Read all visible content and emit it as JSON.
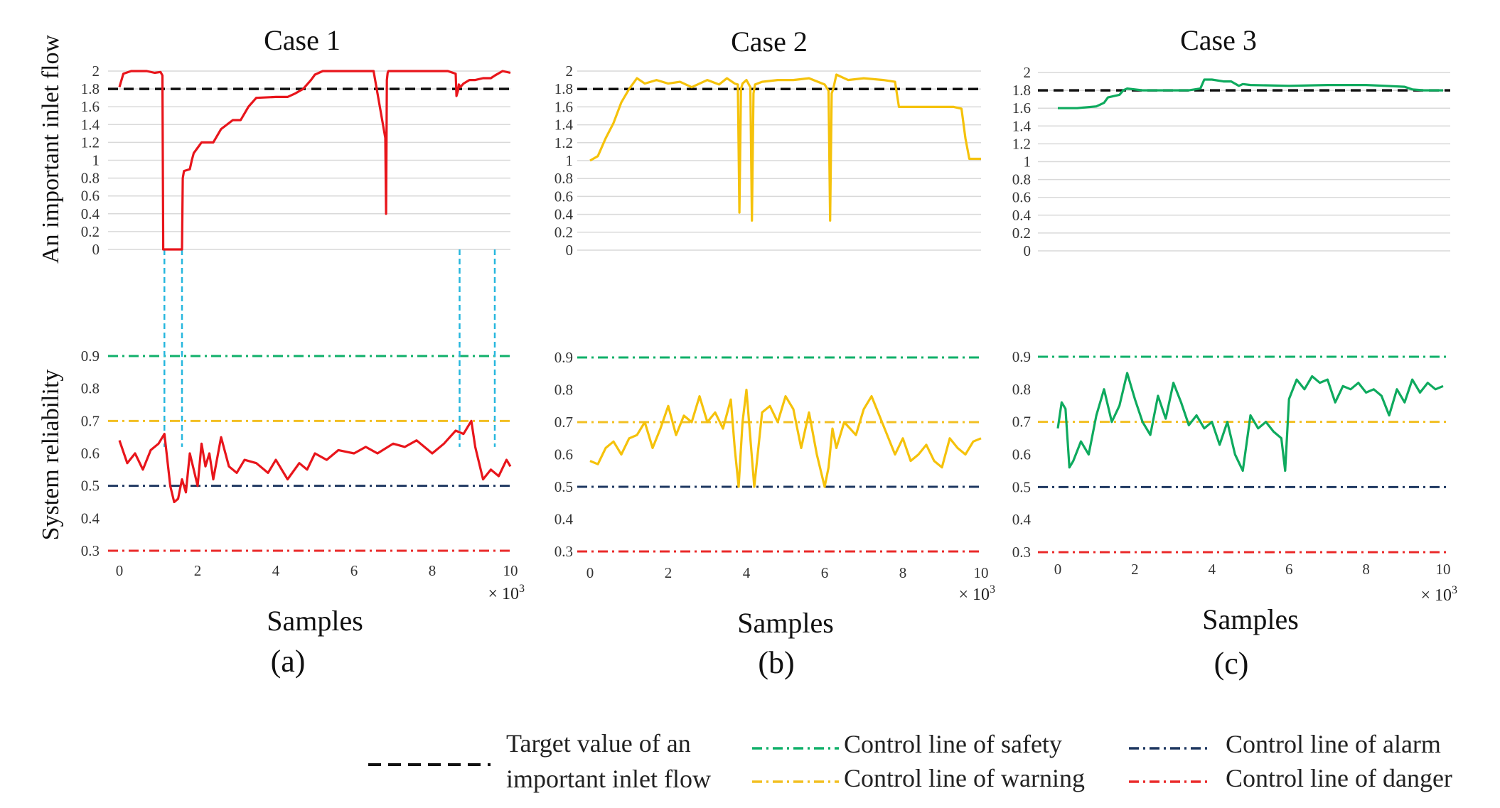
{
  "colors": {
    "case1": "#e8151b",
    "case2": "#f5c20b",
    "case3": "#0eaa5e",
    "target": "#111111",
    "safety": "#10b06a",
    "warning": "#f2bf22",
    "alarm": "#1e3760",
    "danger": "#ea2a2a",
    "connector": "#27b7de",
    "grid": "#d9d9d9"
  },
  "figure": {
    "ylabel_top": "An important inlet flow",
    "ylabel_bottom": "System reliability",
    "xlabel": "Samples",
    "multiplier_base": "× 10",
    "multiplier_exp": "3"
  },
  "legend": {
    "target_line1": "Target value of an",
    "target_line2": "important inlet flow",
    "safety": "Control line of safety",
    "warning": "Control line of warning",
    "alarm": "Control line of alarm",
    "danger": "Control line of danger"
  },
  "chart_data": [
    {
      "type": "line",
      "title": "Case 1",
      "sublabel": "(a)",
      "top": {
        "ylabel": "An important inlet flow",
        "yticks": [
          "0",
          "0.2",
          "0.4",
          "0.6",
          "0.8",
          "1",
          "1.2",
          "1.4",
          "1.6",
          "1.8",
          "2"
        ],
        "ylim": [
          0,
          2
        ],
        "target": 1.8,
        "series": [
          {
            "x": [
              0,
              0.1,
              0.3,
              0.5,
              0.7,
              0.9,
              1.05,
              1.1,
              1.12,
              1.2,
              1.3,
              1.6,
              1.62,
              1.65,
              1.8,
              1.85,
              1.9,
              2.1,
              2.3,
              2.4,
              2.6,
              2.9,
              3.1,
              3.3,
              3.5,
              4.0,
              4.3,
              4.5,
              4.7,
              4.9,
              5.0,
              5.2,
              5.5,
              6.0,
              6.5,
              6.8,
              6.82,
              6.84,
              6.86,
              6.88,
              7.2,
              7.5,
              8.0,
              8.4,
              8.6,
              8.62,
              8.66,
              8.68,
              8.72,
              8.8,
              8.95,
              9.1,
              9.3,
              9.5,
              9.6,
              9.8,
              10.0
            ],
            "y": [
              1.82,
              1.97,
              2.0,
              2.0,
              2.0,
              1.98,
              1.99,
              1.95,
              0.0,
              0.0,
              0.0,
              0.0,
              0.8,
              0.88,
              0.9,
              1.0,
              1.08,
              1.2,
              1.2,
              1.2,
              1.35,
              1.45,
              1.45,
              1.6,
              1.7,
              1.71,
              1.71,
              1.75,
              1.8,
              1.9,
              1.96,
              2.0,
              2.0,
              2.0,
              2.0,
              1.25,
              0.4,
              1.9,
              1.98,
              2.0,
              2.0,
              2.0,
              2.0,
              2.0,
              1.97,
              1.72,
              1.78,
              1.85,
              1.82,
              1.86,
              1.9,
              1.9,
              1.92,
              1.92,
              1.95,
              2.0,
              1.98
            ]
          }
        ]
      },
      "bottom": {
        "ylabel": "System reliability",
        "yticks": [
          "0.3",
          "0.4",
          "0.5",
          "0.6",
          "0.7",
          "0.8",
          "0.9"
        ],
        "ylim": [
          0.3,
          0.9
        ],
        "safety": 0.9,
        "warning": 0.7,
        "alarm": 0.5,
        "danger": 0.3,
        "series": [
          {
            "x": [
              0,
              0.2,
              0.4,
              0.6,
              0.8,
              1.0,
              1.15,
              1.3,
              1.4,
              1.5,
              1.6,
              1.7,
              1.8,
              1.9,
              2.0,
              2.1,
              2.2,
              2.3,
              2.4,
              2.6,
              2.8,
              3.0,
              3.2,
              3.5,
              3.8,
              4.0,
              4.3,
              4.6,
              4.8,
              5.0,
              5.3,
              5.6,
              6.0,
              6.3,
              6.6,
              7.0,
              7.3,
              7.6,
              8.0,
              8.3,
              8.6,
              8.8,
              9.0,
              9.1,
              9.3,
              9.5,
              9.7,
              9.9,
              10.0
            ],
            "y": [
              0.64,
              0.57,
              0.6,
              0.55,
              0.61,
              0.63,
              0.66,
              0.5,
              0.45,
              0.46,
              0.52,
              0.48,
              0.6,
              0.55,
              0.5,
              0.63,
              0.56,
              0.6,
              0.52,
              0.65,
              0.56,
              0.54,
              0.58,
              0.57,
              0.54,
              0.58,
              0.52,
              0.57,
              0.55,
              0.6,
              0.58,
              0.61,
              0.6,
              0.62,
              0.6,
              0.63,
              0.62,
              0.64,
              0.6,
              0.63,
              0.67,
              0.66,
              0.7,
              0.62,
              0.52,
              0.55,
              0.53,
              0.58,
              0.56
            ]
          }
        ]
      },
      "xticks": [
        "0",
        "2",
        "4",
        "6",
        "8",
        "10"
      ],
      "xlim": [
        0,
        10
      ],
      "xlabel": "Samples",
      "connectors": [
        1.15,
        1.6,
        8.7,
        9.6
      ]
    },
    {
      "type": "line",
      "title": "Case 2",
      "sublabel": "(b)",
      "top": {
        "ylabel": "An important inlet flow",
        "yticks": [
          "0",
          "0.2",
          "0.4",
          "0.6",
          "0.8",
          "1",
          "1.2",
          "1.4",
          "1.6",
          "1.8",
          "2"
        ],
        "ylim": [
          0,
          2
        ],
        "target": 1.8,
        "series": [
          {
            "x": [
              0,
              0.2,
              0.4,
              0.6,
              0.8,
              1.0,
              1.2,
              1.4,
              1.7,
              2.0,
              2.3,
              2.6,
              3.0,
              3.3,
              3.5,
              3.7,
              3.78,
              3.82,
              3.86,
              3.9,
              4.0,
              4.1,
              4.14,
              4.18,
              4.22,
              4.4,
              4.8,
              5.2,
              5.6,
              6.0,
              6.1,
              6.14,
              6.18,
              6.22,
              6.3,
              6.6,
              7.0,
              7.5,
              7.8,
              7.9,
              8.0,
              8.5,
              9.0,
              9.3,
              9.5,
              9.6,
              9.7,
              10.0
            ],
            "y": [
              1.0,
              1.05,
              1.25,
              1.42,
              1.65,
              1.8,
              1.92,
              1.86,
              1.9,
              1.86,
              1.88,
              1.82,
              1.9,
              1.85,
              1.92,
              1.86,
              1.85,
              0.42,
              1.8,
              1.86,
              1.9,
              1.82,
              0.33,
              1.75,
              1.85,
              1.88,
              1.9,
              1.9,
              1.92,
              1.85,
              1.78,
              0.33,
              1.75,
              1.8,
              1.96,
              1.9,
              1.92,
              1.9,
              1.88,
              1.6,
              1.6,
              1.6,
              1.6,
              1.6,
              1.58,
              1.25,
              1.02,
              1.02
            ]
          }
        ]
      },
      "bottom": {
        "ylabel": "System reliability",
        "yticks": [
          "0.3",
          "0.4",
          "0.5",
          "0.6",
          "0.7",
          "0.8",
          "0.9"
        ],
        "ylim": [
          0.3,
          0.9
        ],
        "safety": 0.9,
        "warning": 0.7,
        "alarm": 0.5,
        "danger": 0.3,
        "series": [
          {
            "x": [
              0,
              0.2,
              0.4,
              0.6,
              0.8,
              1.0,
              1.2,
              1.4,
              1.6,
              1.8,
              2.0,
              2.2,
              2.4,
              2.6,
              2.8,
              3.0,
              3.2,
              3.4,
              3.6,
              3.7,
              3.8,
              3.9,
              4.0,
              4.1,
              4.2,
              4.4,
              4.6,
              4.8,
              5.0,
              5.2,
              5.4,
              5.6,
              5.8,
              6.0,
              6.1,
              6.2,
              6.3,
              6.5,
              6.8,
              7.0,
              7.2,
              7.4,
              7.6,
              7.8,
              8.0,
              8.2,
              8.4,
              8.6,
              8.8,
              9.0,
              9.2,
              9.4,
              9.6,
              9.8,
              10.0
            ],
            "y": [
              0.58,
              0.57,
              0.62,
              0.64,
              0.6,
              0.65,
              0.66,
              0.7,
              0.62,
              0.68,
              0.75,
              0.66,
              0.72,
              0.7,
              0.78,
              0.7,
              0.73,
              0.68,
              0.77,
              0.62,
              0.5,
              0.7,
              0.8,
              0.65,
              0.5,
              0.73,
              0.75,
              0.7,
              0.78,
              0.74,
              0.62,
              0.73,
              0.6,
              0.5,
              0.56,
              0.68,
              0.62,
              0.7,
              0.66,
              0.74,
              0.78,
              0.72,
              0.66,
              0.6,
              0.65,
              0.58,
              0.6,
              0.63,
              0.58,
              0.56,
              0.65,
              0.62,
              0.6,
              0.64,
              0.65
            ]
          }
        ]
      },
      "xticks": [
        "0",
        "2",
        "4",
        "6",
        "8",
        "10"
      ],
      "xlim": [
        0,
        10
      ],
      "xlabel": "Samples",
      "connectors": []
    },
    {
      "type": "line",
      "title": "Case 3",
      "sublabel": "(c)",
      "top": {
        "ylabel": "An important inlet flow",
        "yticks": [
          "0",
          "0.2",
          "0.4",
          "0.6",
          "0.8",
          "1",
          "1.2",
          "1.4",
          "1.6",
          "1.8",
          "2"
        ],
        "ylim": [
          0,
          2
        ],
        "target": 1.8,
        "series": [
          {
            "x": [
              0,
              0.5,
              1.0,
              1.2,
              1.3,
              1.6,
              1.7,
              1.8,
              2.2,
              2.8,
              3.4,
              3.7,
              3.8,
              4.0,
              4.3,
              4.5,
              4.7,
              4.8,
              5.0,
              6.0,
              7.0,
              8.0,
              8.5,
              9.0,
              9.2,
              9.5,
              10.0
            ],
            "y": [
              1.6,
              1.6,
              1.62,
              1.66,
              1.72,
              1.75,
              1.8,
              1.82,
              1.8,
              1.8,
              1.8,
              1.82,
              1.92,
              1.92,
              1.9,
              1.9,
              1.85,
              1.87,
              1.86,
              1.85,
              1.86,
              1.86,
              1.85,
              1.84,
              1.81,
              1.8,
              1.8
            ]
          }
        ]
      },
      "bottom": {
        "ylabel": "System reliability",
        "yticks": [
          "0.3",
          "0.4",
          "0.5",
          "0.6",
          "0.7",
          "0.8",
          "0.9"
        ],
        "ylim": [
          0.3,
          0.9
        ],
        "safety": 0.9,
        "warning": 0.7,
        "alarm": 0.5,
        "danger": 0.3,
        "series": [
          {
            "x": [
              0,
              0.1,
              0.2,
              0.3,
              0.4,
              0.6,
              0.8,
              1.0,
              1.2,
              1.4,
              1.6,
              1.8,
              2.0,
              2.2,
              2.4,
              2.6,
              2.8,
              3.0,
              3.2,
              3.4,
              3.6,
              3.8,
              4.0,
              4.2,
              4.4,
              4.6,
              4.8,
              5.0,
              5.2,
              5.4,
              5.6,
              5.8,
              5.9,
              6.0,
              6.2,
              6.4,
              6.6,
              6.8,
              7.0,
              7.2,
              7.4,
              7.6,
              7.8,
              8.0,
              8.2,
              8.4,
              8.6,
              8.8,
              9.0,
              9.2,
              9.4,
              9.6,
              9.8,
              10.0
            ],
            "y": [
              0.68,
              0.76,
              0.74,
              0.56,
              0.58,
              0.64,
              0.6,
              0.72,
              0.8,
              0.7,
              0.75,
              0.85,
              0.77,
              0.7,
              0.66,
              0.78,
              0.71,
              0.82,
              0.76,
              0.69,
              0.72,
              0.68,
              0.7,
              0.63,
              0.7,
              0.6,
              0.55,
              0.72,
              0.68,
              0.7,
              0.67,
              0.65,
              0.55,
              0.77,
              0.83,
              0.8,
              0.84,
              0.82,
              0.83,
              0.76,
              0.81,
              0.8,
              0.82,
              0.79,
              0.8,
              0.78,
              0.72,
              0.8,
              0.76,
              0.83,
              0.79,
              0.82,
              0.8,
              0.81
            ]
          }
        ]
      },
      "xticks": [
        "0",
        "2",
        "4",
        "6",
        "8",
        "10"
      ],
      "xlim": [
        0,
        10
      ],
      "xlabel": "Samples",
      "connectors": []
    }
  ]
}
